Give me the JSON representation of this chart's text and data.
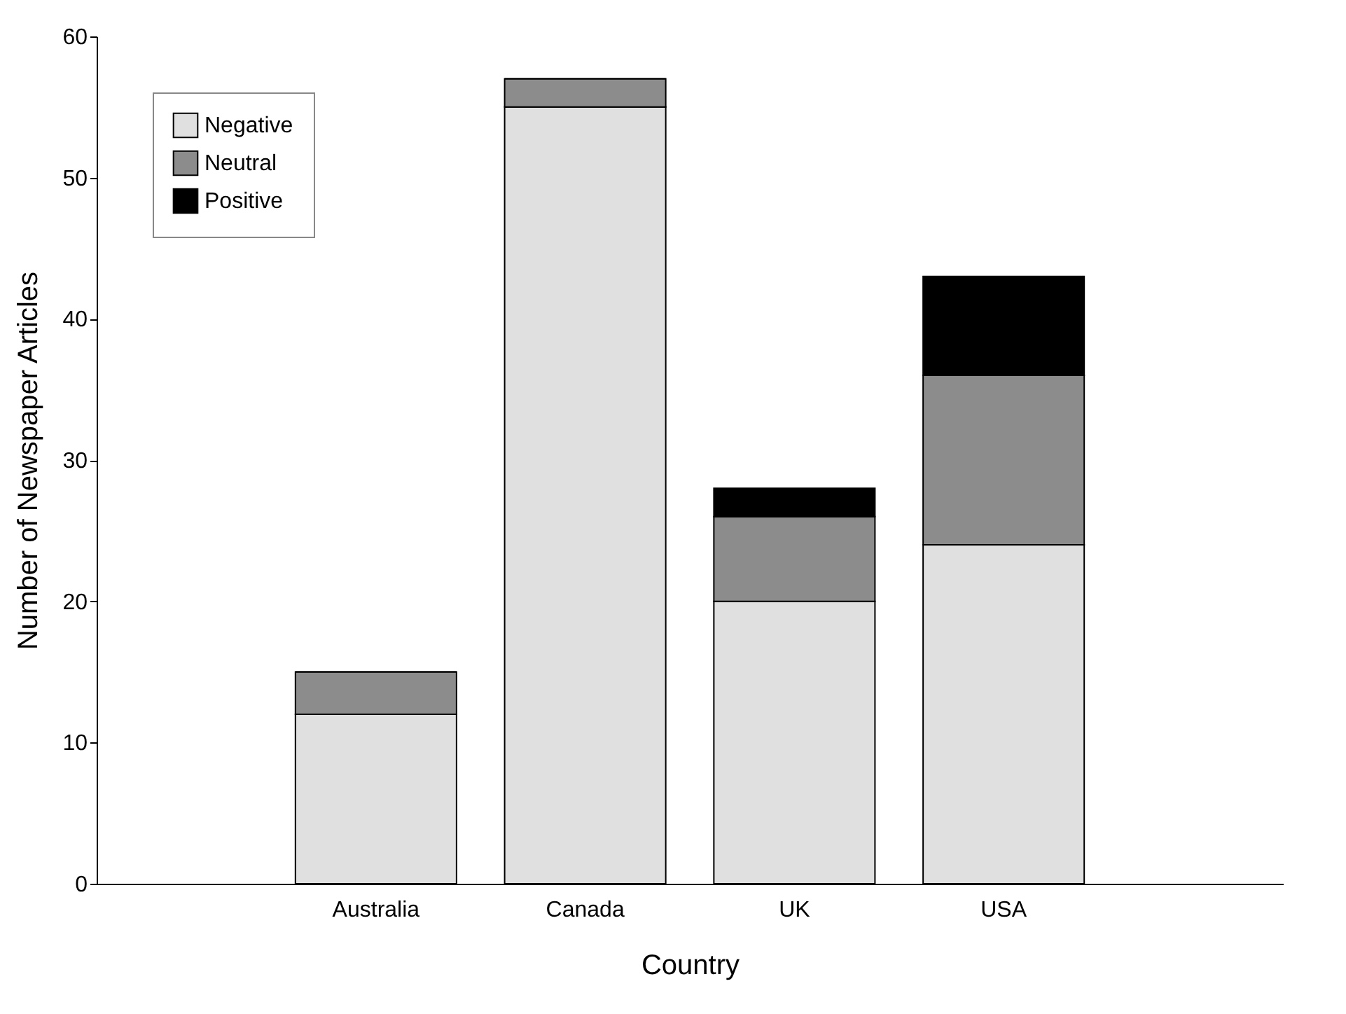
{
  "chart_data": {
    "type": "bar",
    "stacked": true,
    "xlabel": "Country",
    "ylabel": "Number of Newspaper Articles",
    "categories": [
      "Australia",
      "Canada",
      "UK",
      "USA"
    ],
    "series": [
      {
        "name": "Negative",
        "color": "#e0e0e0",
        "values": [
          12,
          55,
          20,
          24
        ]
      },
      {
        "name": "Neutral",
        "color": "#8c8c8c",
        "values": [
          3,
          2,
          6,
          12
        ]
      },
      {
        "name": "Positive",
        "color": "#000000",
        "values": [
          0,
          0,
          2,
          7
        ]
      }
    ],
    "ylim": [
      0,
      60
    ],
    "yticks": [
      0,
      10,
      20,
      30,
      40,
      50,
      60
    ],
    "grid": false,
    "legend": "top left"
  }
}
